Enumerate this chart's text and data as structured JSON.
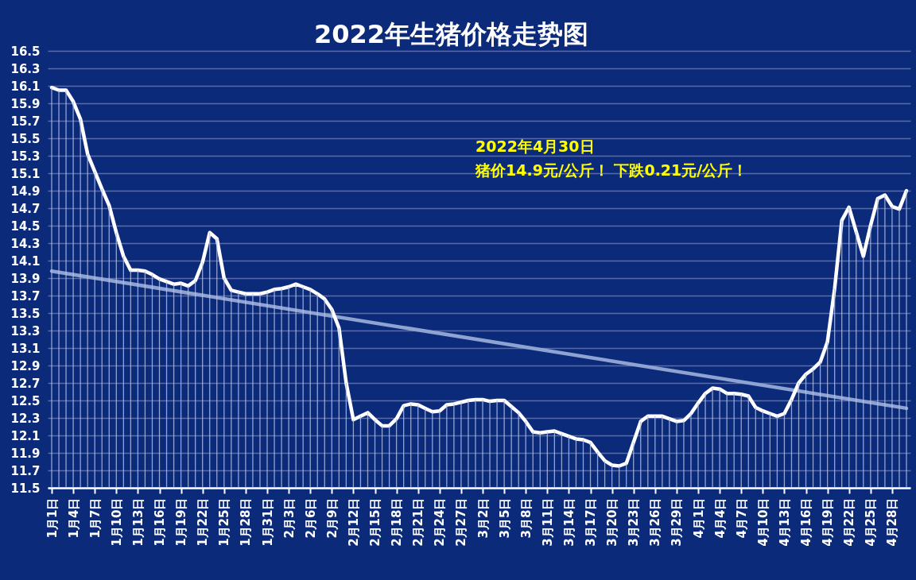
{
  "chart_data": {
    "type": "line",
    "title": "2022年生猪价格走势图",
    "annotations": [
      "2022年4月30日",
      "猪价14.9元/公斤！ 下跌0.21元/公斤！"
    ],
    "x": [
      "2022-01-01",
      "2022-01-02",
      "2022-01-03",
      "2022-01-04",
      "2022-01-05",
      "2022-01-06",
      "2022-01-07",
      "2022-01-08",
      "2022-01-09",
      "2022-01-10",
      "2022-01-11",
      "2022-01-12",
      "2022-01-13",
      "2022-01-14",
      "2022-01-15",
      "2022-01-16",
      "2022-01-17",
      "2022-01-18",
      "2022-01-19",
      "2022-01-20",
      "2022-01-21",
      "2022-01-22",
      "2022-01-23",
      "2022-01-24",
      "2022-01-25",
      "2022-01-26",
      "2022-01-27",
      "2022-01-28",
      "2022-01-29",
      "2022-01-30",
      "2022-01-31",
      "2022-02-01",
      "2022-02-02",
      "2022-02-03",
      "2022-02-04",
      "2022-02-05",
      "2022-02-06",
      "2022-02-07",
      "2022-02-08",
      "2022-02-09",
      "2022-02-10",
      "2022-02-11",
      "2022-02-12",
      "2022-02-13",
      "2022-02-14",
      "2022-02-15",
      "2022-02-16",
      "2022-02-17",
      "2022-02-18",
      "2022-02-19",
      "2022-02-20",
      "2022-02-21",
      "2022-02-22",
      "2022-02-23",
      "2022-02-24",
      "2022-02-25",
      "2022-02-26",
      "2022-02-27",
      "2022-02-28",
      "2022-03-01",
      "2022-03-02",
      "2022-03-03",
      "2022-03-04",
      "2022-03-05",
      "2022-03-06",
      "2022-03-07",
      "2022-03-08",
      "2022-03-09",
      "2022-03-10",
      "2022-03-11",
      "2022-03-12",
      "2022-03-13",
      "2022-03-14",
      "2022-03-15",
      "2022-03-16",
      "2022-03-17",
      "2022-03-18",
      "2022-03-19",
      "2022-03-20",
      "2022-03-21",
      "2022-03-22",
      "2022-03-23",
      "2022-03-24",
      "2022-03-25",
      "2022-03-26",
      "2022-03-27",
      "2022-03-28",
      "2022-03-29",
      "2022-03-30",
      "2022-03-31",
      "2022-04-01",
      "2022-04-02",
      "2022-04-03",
      "2022-04-04",
      "2022-04-05",
      "2022-04-06",
      "2022-04-07",
      "2022-04-08",
      "2022-04-09",
      "2022-04-10",
      "2022-04-11",
      "2022-04-12",
      "2022-04-13",
      "2022-04-14",
      "2022-04-15",
      "2022-04-16",
      "2022-04-17",
      "2022-04-18",
      "2022-04-19",
      "2022-04-20",
      "2022-04-21",
      "2022-04-22",
      "2022-04-23",
      "2022-04-24",
      "2022-04-25",
      "2022-04-26",
      "2022-04-27",
      "2022-04-28",
      "2022-04-29",
      "2022-04-30"
    ],
    "series": [
      {
        "type": "line",
        "color": "#8fa3d3",
        "x": [
          "2022-01-01",
          "2022-04-30"
        ],
        "values": [
          13.98,
          12.41
        ]
      },
      {
        "color": "#ffffff",
        "values": [
          16.08,
          16.05,
          16.05,
          15.92,
          15.72,
          15.32,
          15.12,
          14.92,
          14.73,
          14.42,
          14.15,
          13.99,
          13.99,
          13.98,
          13.94,
          13.89,
          13.86,
          13.83,
          13.84,
          13.81,
          13.87,
          14.08,
          14.42,
          14.35,
          13.9,
          13.76,
          13.74,
          13.72,
          13.72,
          13.72,
          13.74,
          13.77,
          13.78,
          13.8,
          13.83,
          13.8,
          13.77,
          13.72,
          13.66,
          13.54,
          13.33,
          12.7,
          12.28,
          12.32,
          12.36,
          12.28,
          12.21,
          12.21,
          12.29,
          12.44,
          12.46,
          12.45,
          12.41,
          12.37,
          12.38,
          12.45,
          12.46,
          12.48,
          12.5,
          12.51,
          12.51,
          12.49,
          12.5,
          12.5,
          12.43,
          12.36,
          12.26,
          12.14,
          12.13,
          12.14,
          12.15,
          12.12,
          12.09,
          12.06,
          12.05,
          12.02,
          11.91,
          11.81,
          11.76,
          11.75,
          11.78,
          12.02,
          12.26,
          12.32,
          12.32,
          12.32,
          12.29,
          12.26,
          12.27,
          12.35,
          12.47,
          12.58,
          12.64,
          12.63,
          12.58,
          12.58,
          12.57,
          12.55,
          12.42,
          12.38,
          12.35,
          12.32,
          12.35,
          12.51,
          12.7,
          12.8,
          12.86,
          12.94,
          13.17,
          13.78,
          14.56,
          14.71,
          14.43,
          14.15,
          14.5,
          14.81,
          14.85,
          14.72,
          14.69,
          14.9
        ]
      },
      {
        "type": "bar",
        "color": "#b4c2e6",
        "values": [
          16.08,
          16.05,
          16.05,
          15.92,
          15.72,
          15.32,
          15.12,
          14.92,
          14.73,
          14.42,
          14.15,
          13.99,
          13.99,
          13.98,
          13.94,
          13.89,
          13.86,
          13.83,
          13.84,
          13.81,
          13.87,
          14.08,
          14.42,
          14.35,
          13.9,
          13.76,
          13.74,
          13.72,
          13.72,
          13.72,
          13.74,
          13.77,
          13.78,
          13.8,
          13.83,
          13.8,
          13.77,
          13.72,
          13.66,
          13.54,
          13.33,
          12.7,
          12.28,
          12.32,
          12.36,
          12.28,
          12.21,
          12.21,
          12.29,
          12.44,
          12.46,
          12.45,
          12.41,
          12.37,
          12.38,
          12.45,
          12.46,
          12.48,
          12.5,
          12.51,
          12.51,
          12.49,
          12.5,
          12.5,
          12.43,
          12.36,
          12.26,
          12.14,
          12.13,
          12.14,
          12.15,
          12.12,
          12.09,
          12.06,
          12.05,
          12.02,
          11.91,
          11.81,
          11.76,
          11.75,
          11.78,
          12.02,
          12.26,
          12.32,
          12.32,
          12.32,
          12.29,
          12.26,
          12.27,
          12.35,
          12.47,
          12.58,
          12.64,
          12.63,
          12.58,
          12.58,
          12.57,
          12.55,
          12.42,
          12.38,
          12.35,
          12.32,
          12.35,
          12.51,
          12.7,
          12.8,
          12.86,
          12.94,
          13.17,
          13.78,
          14.56,
          14.71,
          14.43,
          14.15,
          14.5,
          14.81,
          14.85,
          14.72,
          14.69,
          14.9
        ]
      }
    ],
    "xlim": [
      "2022-01-01",
      "2022-04-30"
    ],
    "xticks": [
      {
        "value": "2022-01-01",
        "label": "1月1日"
      },
      {
        "value": "2022-01-04",
        "label": "1月4日"
      },
      {
        "value": "2022-01-07",
        "label": "1月7日"
      },
      {
        "value": "2022-01-10",
        "label": "1月10日"
      },
      {
        "value": "2022-01-13",
        "label": "1月13日"
      },
      {
        "value": "2022-01-16",
        "label": "1月16日"
      },
      {
        "value": "2022-01-19",
        "label": "1月19日"
      },
      {
        "value": "2022-01-22",
        "label": "1月22日"
      },
      {
        "value": "2022-01-25",
        "label": "1月25日"
      },
      {
        "value": "2022-01-28",
        "label": "1月28日"
      },
      {
        "value": "2022-01-31",
        "label": "1月31日"
      },
      {
        "value": "2022-02-03",
        "label": "2月3日"
      },
      {
        "value": "2022-02-06",
        "label": "2月6日"
      },
      {
        "value": "2022-02-09",
        "label": "2月9日"
      },
      {
        "value": "2022-02-12",
        "label": "2月12日"
      },
      {
        "value": "2022-02-15",
        "label": "2月15日"
      },
      {
        "value": "2022-02-18",
        "label": "2月18日"
      },
      {
        "value": "2022-02-21",
        "label": "2月21日"
      },
      {
        "value": "2022-02-24",
        "label": "2月24日"
      },
      {
        "value": "2022-02-27",
        "label": "2月27日"
      },
      {
        "value": "2022-03-02",
        "label": "3月2日"
      },
      {
        "value": "2022-03-05",
        "label": "3月5日"
      },
      {
        "value": "2022-03-08",
        "label": "3月8日"
      },
      {
        "value": "2022-03-11",
        "label": "3月11日"
      },
      {
        "value": "2022-03-14",
        "label": "3月14日"
      },
      {
        "value": "2022-03-17",
        "label": "3月17日"
      },
      {
        "value": "2022-03-20",
        "label": "3月20日"
      },
      {
        "value": "2022-03-23",
        "label": "3月23日"
      },
      {
        "value": "2022-03-26",
        "label": "3月26日"
      },
      {
        "value": "2022-03-29",
        "label": "3月29日"
      },
      {
        "value": "2022-04-01",
        "label": "4月1日"
      },
      {
        "value": "2022-04-04",
        "label": "4月4日"
      },
      {
        "value": "2022-04-07",
        "label": "4月7日"
      },
      {
        "value": "2022-04-10",
        "label": "4月10日"
      },
      {
        "value": "2022-04-13",
        "label": "4月13日"
      },
      {
        "value": "2022-04-16",
        "label": "4月16日"
      },
      {
        "value": "2022-04-19",
        "label": "4月19日"
      },
      {
        "value": "2022-04-22",
        "label": "4月22日"
      },
      {
        "value": "2022-04-25",
        "label": "4月25日"
      },
      {
        "value": "2022-04-28",
        "label": "4月28日"
      }
    ],
    "ylim": [
      11.5,
      16.5
    ],
    "yticks": [
      11.5,
      11.7,
      11.9,
      12.1,
      12.3,
      12.5,
      12.7,
      12.9,
      13.1,
      13.3,
      13.5,
      13.7,
      13.9,
      14.1,
      14.3,
      14.5,
      14.7,
      14.9,
      15.1,
      15.3,
      15.5,
      15.7,
      15.9,
      16.1,
      16.3,
      16.5
    ],
    "grid": "y"
  }
}
